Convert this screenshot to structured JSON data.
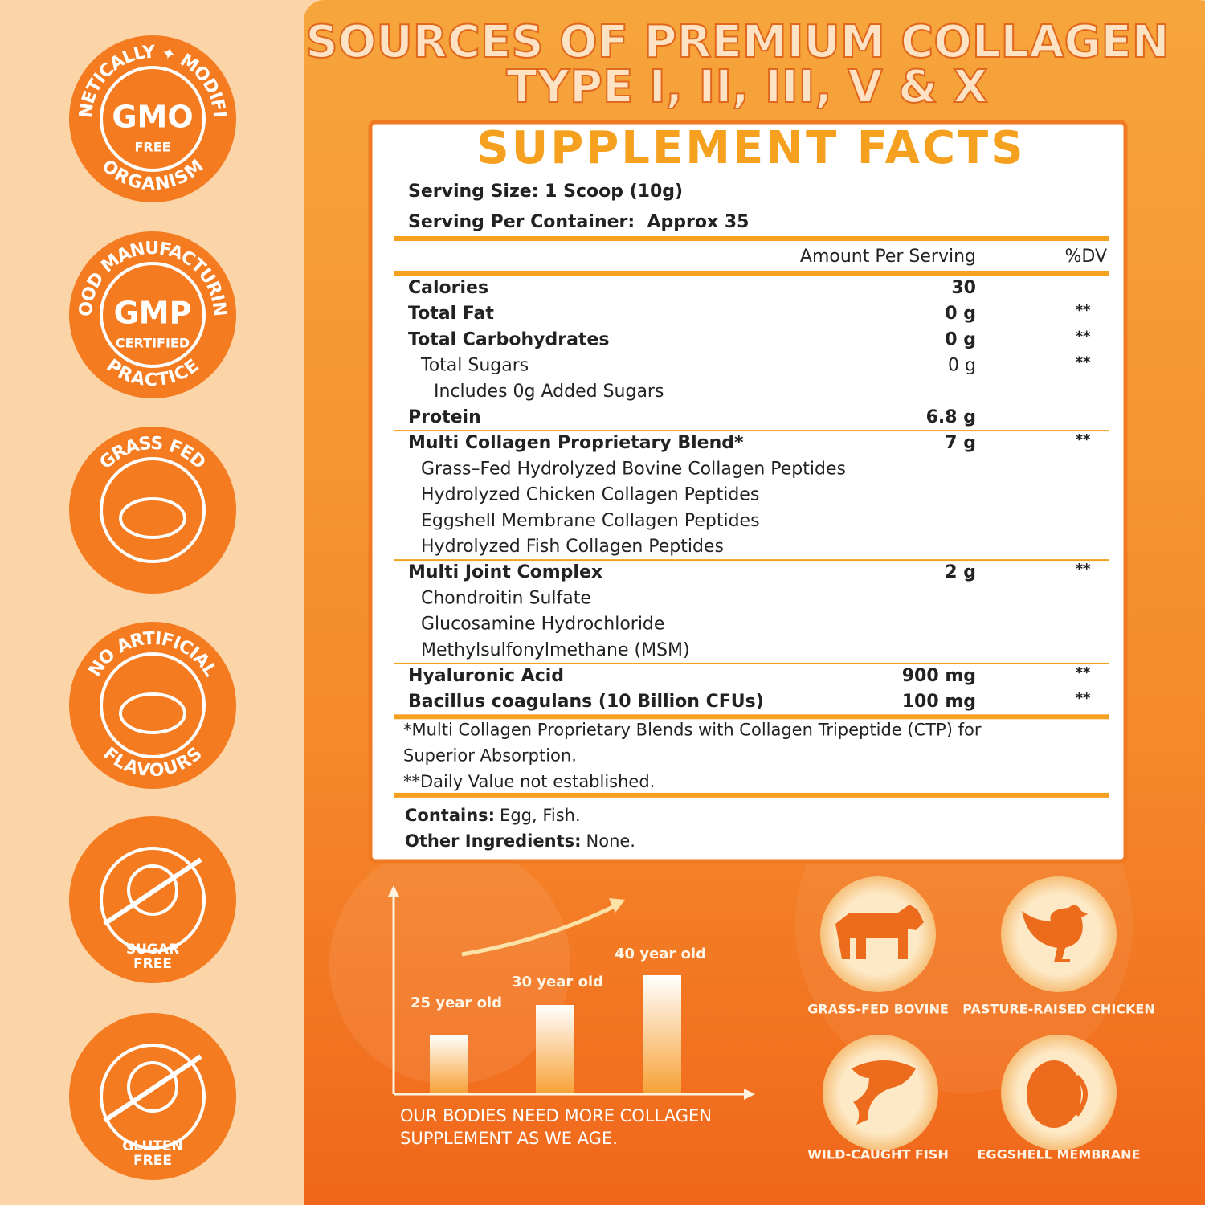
{
  "badges": [
    {
      "arc_top": "GENETICALLY ✦ MODIFIED",
      "main": "GMO",
      "sub": "FREE",
      "arc_bottom": "ORGANISM"
    },
    {
      "arc_top": "GOOD MANUFACTURING",
      "main": "GMP",
      "sub": "CERTIFIED",
      "arc_bottom": "PRACTICE"
    },
    {
      "arc_top": "GRASS FED"
    },
    {
      "arc_top": "NO ARTIFICIAL",
      "arc_bottom": "FLAVOURS"
    },
    {
      "lines": [
        "SUGAR",
        "FREE"
      ]
    },
    {
      "lines": [
        "GLUTEN",
        "FREE"
      ]
    }
  ],
  "header": {
    "title_line1": "SOURCES OF PREMIUM COLLAGEN",
    "title_line2": "TYPE I, II, III, V & X"
  },
  "facts": {
    "title": "SUPPLEMENT FACTS",
    "serving_size": "Serving Size: 1 Scoop (10g)",
    "servings": "Serving Per Container:  Approx 35",
    "col_amount": "Amount Per Serving",
    "col_dv": "%DV",
    "sections": [
      [
        {
          "name": "Calories",
          "amount": "30"
        },
        {
          "name": "Total Fat",
          "amount": "0 g",
          "dv": "**"
        },
        {
          "name": "Total Carbohydrates",
          "amount": "0 g",
          "dv": "**",
          "sub": [
            {
              "name": "Total Sugars",
              "amount": "0 g",
              "dv": "**",
              "sub": [
                {
                  "name": "Includes 0g Added Sugars"
                }
              ]
            }
          ]
        },
        {
          "name": "Protein",
          "amount": "6.8 g"
        }
      ],
      [
        {
          "name": "Multi Collagen Proprietary Blend*",
          "amount": "7 g",
          "dv": "**",
          "sub": [
            {
              "name": "Grass–Fed Hydrolyzed Bovine Collagen Peptides"
            },
            {
              "name": "Hydrolyzed Chicken Collagen Peptides"
            },
            {
              "name": "Eggshell Membrane Collagen Peptides"
            },
            {
              "name": "Hydrolyzed Fish Collagen Peptides"
            }
          ]
        }
      ],
      [
        {
          "name": "Multi Joint Complex",
          "amount": "2 g",
          "dv": "**",
          "sub": [
            {
              "name": "Chondroitin Sulfate"
            },
            {
              "name": "Glucosamine Hydrochloride"
            },
            {
              "name": "Methylsulfonylmethane (MSM)"
            }
          ]
        }
      ],
      [
        {
          "name": "Hyaluronic Acid",
          "amount": "900 mg",
          "dv": "**"
        },
        {
          "name": "Bacillus coagulans (10 Billion CFUs)",
          "amount": "100 mg",
          "dv": "**"
        }
      ]
    ],
    "footnotes": [
      "*Multi Collagen Proprietary Blends with Collagen Tripeptide (CTP) for",
      "Superior Absorption.",
      "**Daily Value not established."
    ],
    "contains_label": "Contains:",
    "contains": "Egg, Fish.",
    "other_label": "Other Ingredients:",
    "other": "None."
  },
  "age_chart": {
    "labels": [
      "25 year old",
      "30 year old",
      "40 year old"
    ],
    "caption": [
      "OUR BODIES NEED MORE COLLAGEN",
      "SUPPLEMENT AS WE AGE."
    ]
  },
  "sources": [
    "GRASS-FED BOVINE",
    "PASTURE-RAISED CHICKEN",
    "WILD-CAUGHT FISH",
    "EGGSHELL MEMBRANE"
  ]
}
